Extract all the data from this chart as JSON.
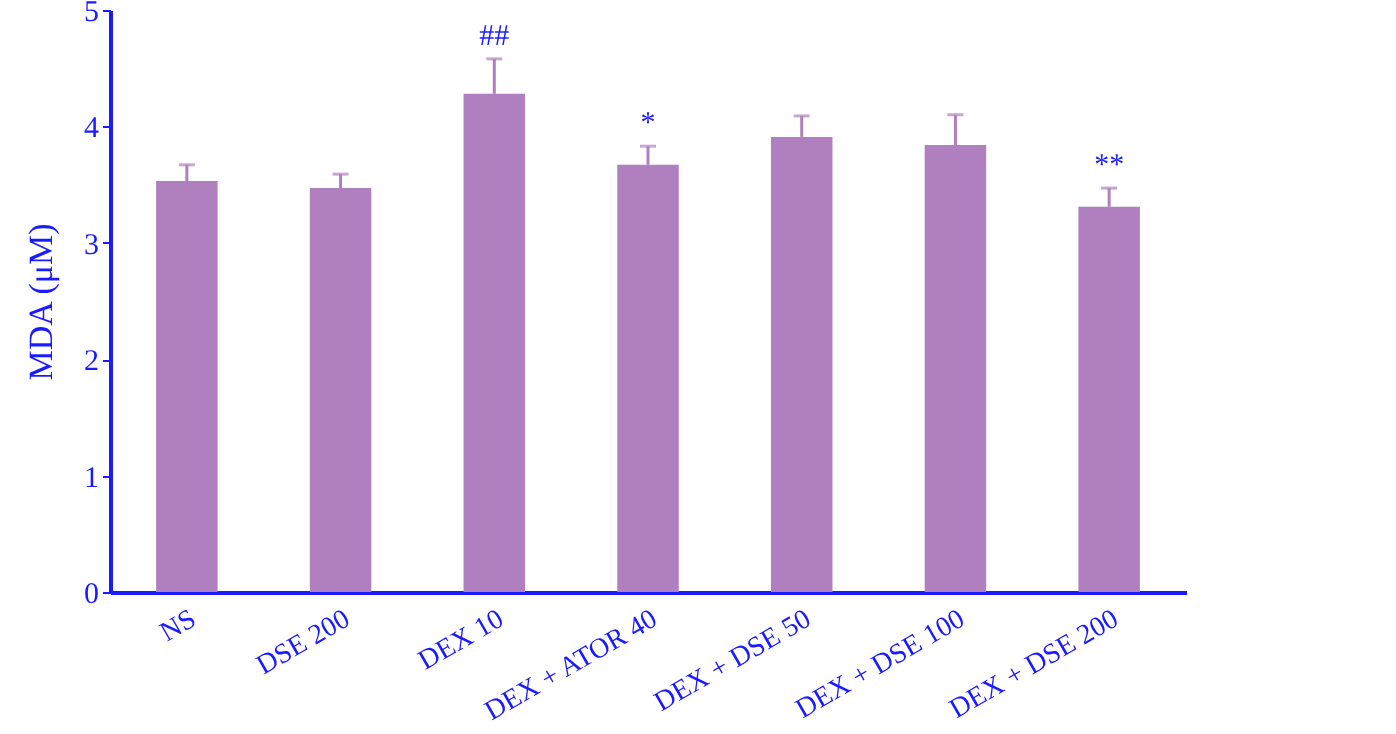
{
  "chart_data": {
    "type": "bar",
    "ylabel": "MDA (μM)",
    "categories": [
      "NS",
      "DSE 200",
      "DEX 10",
      "DEX + ATOR 40",
      "DEX + DSE 50",
      "DEX + DSE 100",
      "DEX + DSE 200"
    ],
    "values": [
      3.53,
      3.47,
      4.28,
      3.67,
      3.91,
      3.84,
      3.31
    ],
    "errors": [
      [
        3.53,
        3.67
      ],
      [
        3.47,
        3.59
      ],
      [
        4.28,
        4.58
      ],
      [
        3.67,
        3.83
      ],
      [
        3.91,
        4.09
      ],
      [
        3.84,
        4.1
      ],
      [
        3.31,
        3.47
      ]
    ],
    "color": "#b07fbf",
    "ylim": [
      0,
      5
    ],
    "yticks": [
      0,
      1,
      2,
      3,
      4,
      5
    ],
    "grid": false,
    "annotations": [
      {
        "text": "##",
        "x": "DEX 10",
        "y": 4.58
      },
      {
        "text": "*",
        "x": "DEX + ATOR 40",
        "y": 3.83
      },
      {
        "text": "**",
        "x": "DEX + DSE 200",
        "y": 3.47
      }
    ]
  }
}
